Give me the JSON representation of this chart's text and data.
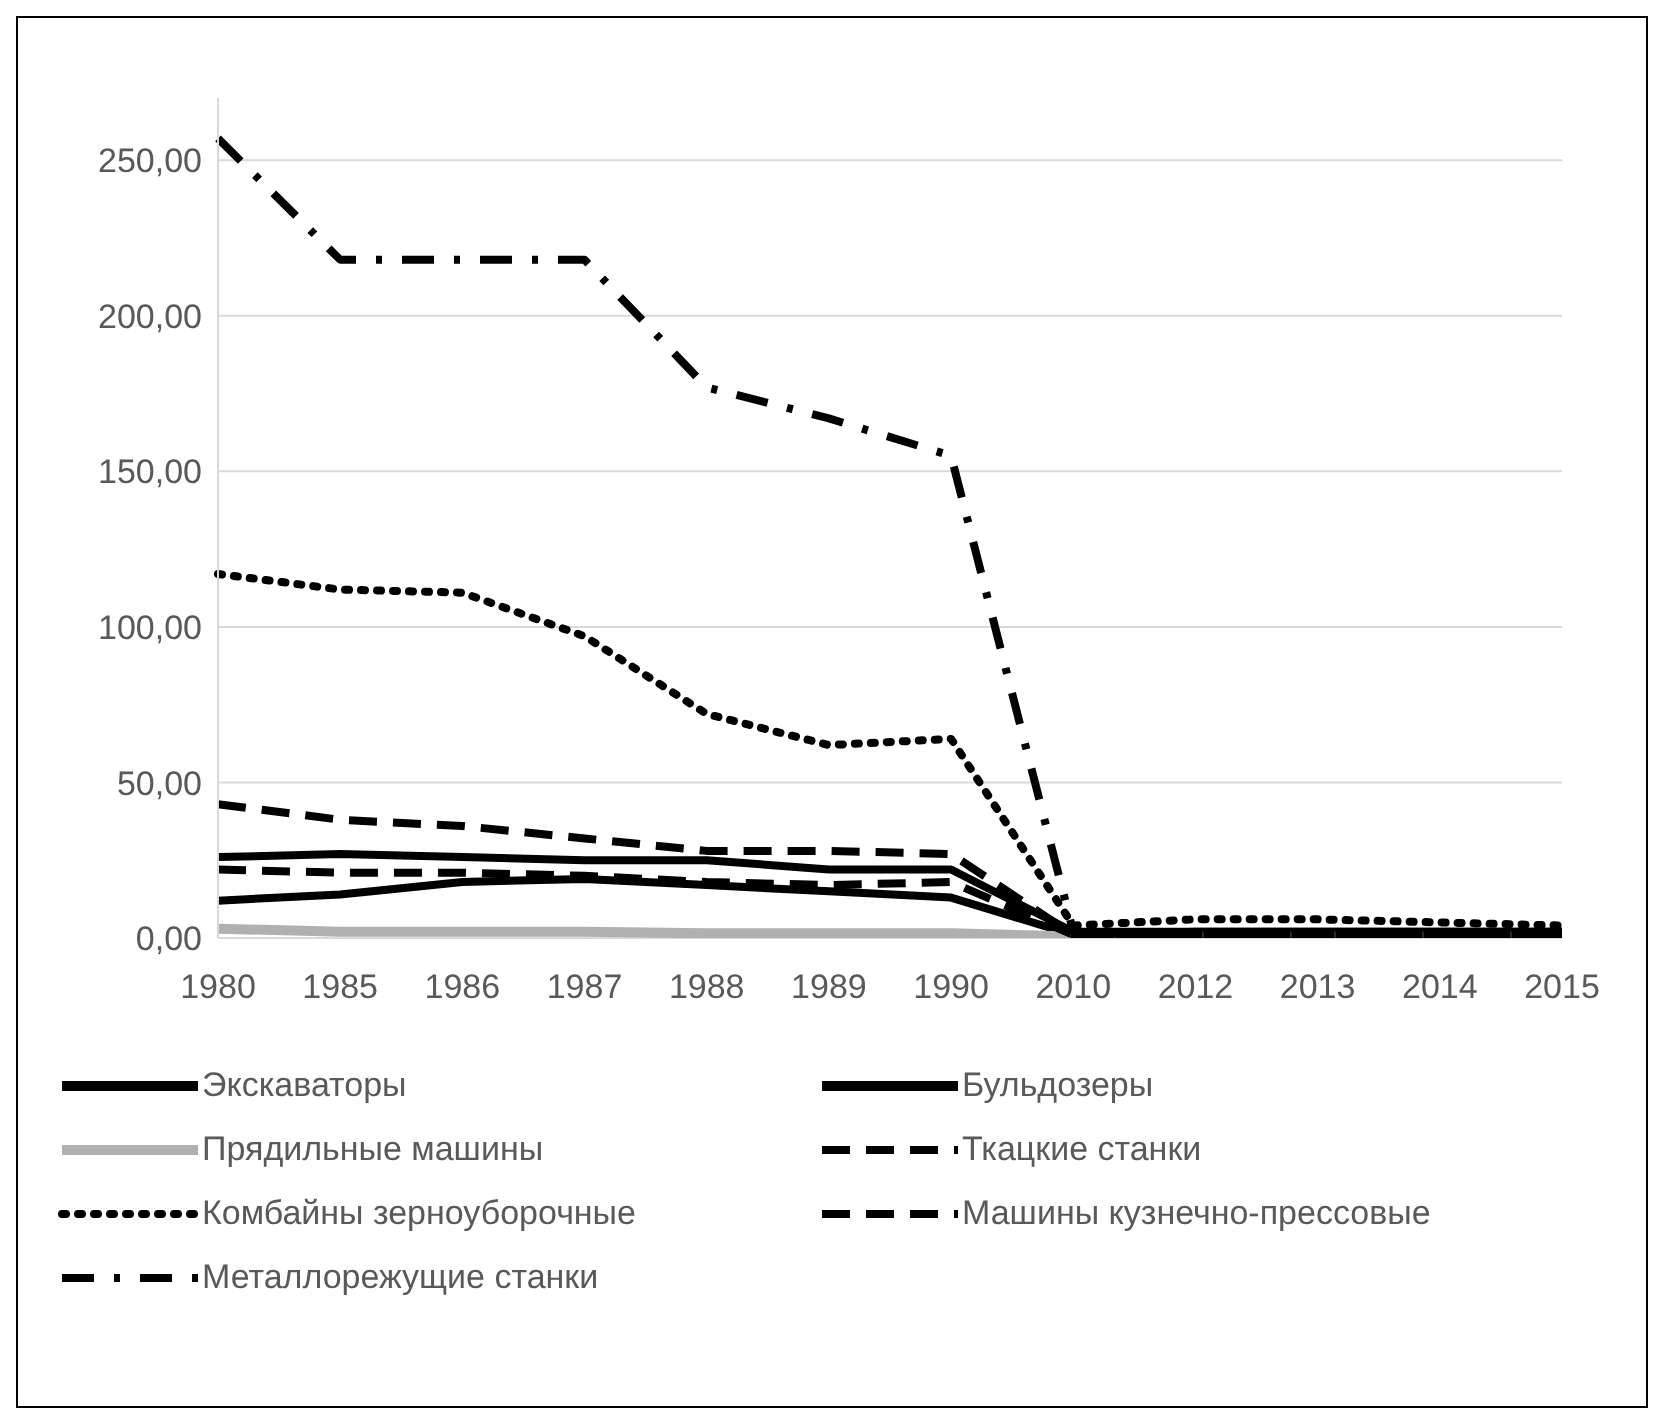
{
  "chart_data": {
    "type": "line",
    "ylim": [
      0,
      270
    ],
    "categories": [
      "1980",
      "1985",
      "1986",
      "1987",
      "1988",
      "1989",
      "1990",
      "2010",
      "2012",
      "2013",
      "2014",
      "2015"
    ],
    "yticks": [
      {
        "value": 0,
        "label": "0,00"
      },
      {
        "value": 50,
        "label": "50,00"
      },
      {
        "value": 100,
        "label": "100,00"
      },
      {
        "value": 150,
        "label": "150,00"
      },
      {
        "value": 200,
        "label": "200,00"
      },
      {
        "value": 250,
        "label": "250,00"
      }
    ],
    "grid": "y",
    "legend": "bottom",
    "marker": "none",
    "series": [
      {
        "name": "Экскаваторы",
        "color": "#000000",
        "line_style": "solid",
        "values": [
          12,
          14,
          18,
          19,
          17,
          15,
          13,
          1,
          2,
          2,
          2,
          2
        ]
      },
      {
        "name": "Бульдозеры",
        "color": "#000000",
        "line_style": "solid",
        "values": [
          26,
          27,
          26,
          25,
          25,
          22,
          22,
          2,
          2,
          2,
          2,
          2
        ]
      },
      {
        "name": "Прядильные машины",
        "color": "#b0b0b0",
        "line_style": "solid",
        "values": [
          3,
          2,
          2,
          2,
          1.5,
          1.5,
          1.5,
          0.5,
          0.5,
          0.5,
          0.5,
          0.5
        ]
      },
      {
        "name": "Ткацкие станки",
        "color": "#000000",
        "line_style": "dashed",
        "values": [
          22,
          21,
          21,
          20,
          18,
          17,
          18,
          1,
          1,
          1,
          1,
          1
        ]
      },
      {
        "name": "Комбайны зерноуборочные",
        "color": "#000000",
        "line_style": "dotted",
        "values": [
          117,
          112,
          111,
          97,
          72,
          62,
          64,
          4,
          6,
          6,
          5,
          4
        ]
      },
      {
        "name": "Машины кузнечно-прессовые",
        "color": "#000000",
        "line_style": "dashed",
        "values": [
          43,
          38,
          36,
          32,
          28,
          28,
          27,
          1,
          1,
          1,
          1,
          1
        ]
      },
      {
        "name": "Металлорежущие станки",
        "color": "#000000",
        "line_style": "dashdot",
        "values": [
          257,
          218,
          218,
          218,
          177,
          167,
          155,
          2,
          1,
          1,
          1,
          1
        ]
      }
    ]
  }
}
